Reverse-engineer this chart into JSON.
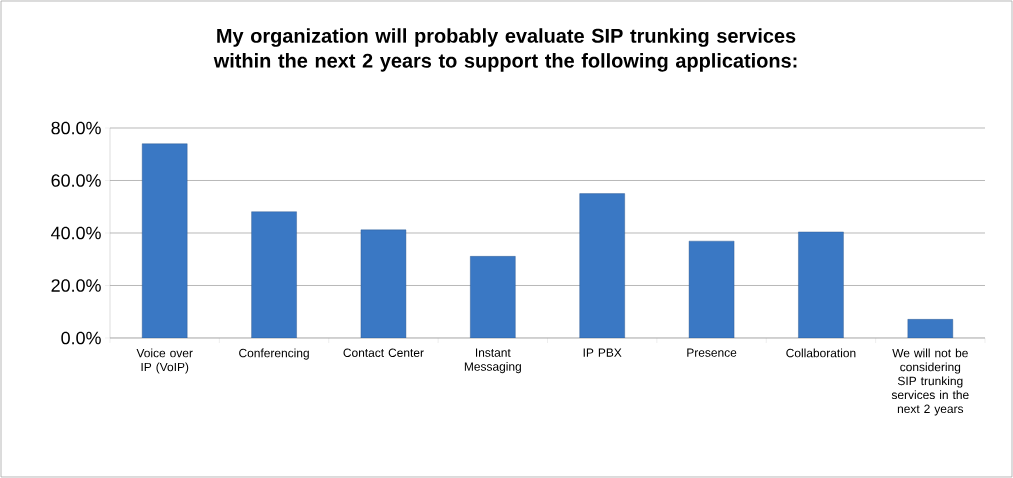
{
  "chart_data": {
    "type": "bar",
    "title": "My organization will probably evaluate SIP trunking services within the next 2 years to support the following applications:",
    "categories": [
      "Voice over IP (VoIP)",
      "Conferencing",
      "Contact Center",
      "Instant Messaging",
      "IP PBX",
      "Presence",
      "Collaboration",
      "We will not be considering SIP trunking services in the next 2 years"
    ],
    "values": [
      74.0,
      48.1,
      41.2,
      31.1,
      55.0,
      36.9,
      40.4,
      7.1
    ],
    "color": "#3a78c4",
    "ylim": [
      0,
      80
    ],
    "yticks": [
      {
        "value": 0,
        "label": "0.0%"
      },
      {
        "value": 20,
        "label": "20.0%"
      },
      {
        "value": 40,
        "label": "40.0%"
      },
      {
        "value": 60,
        "label": "60.0%"
      },
      {
        "value": 80,
        "label": "80.0%"
      }
    ],
    "grid": "y"
  }
}
